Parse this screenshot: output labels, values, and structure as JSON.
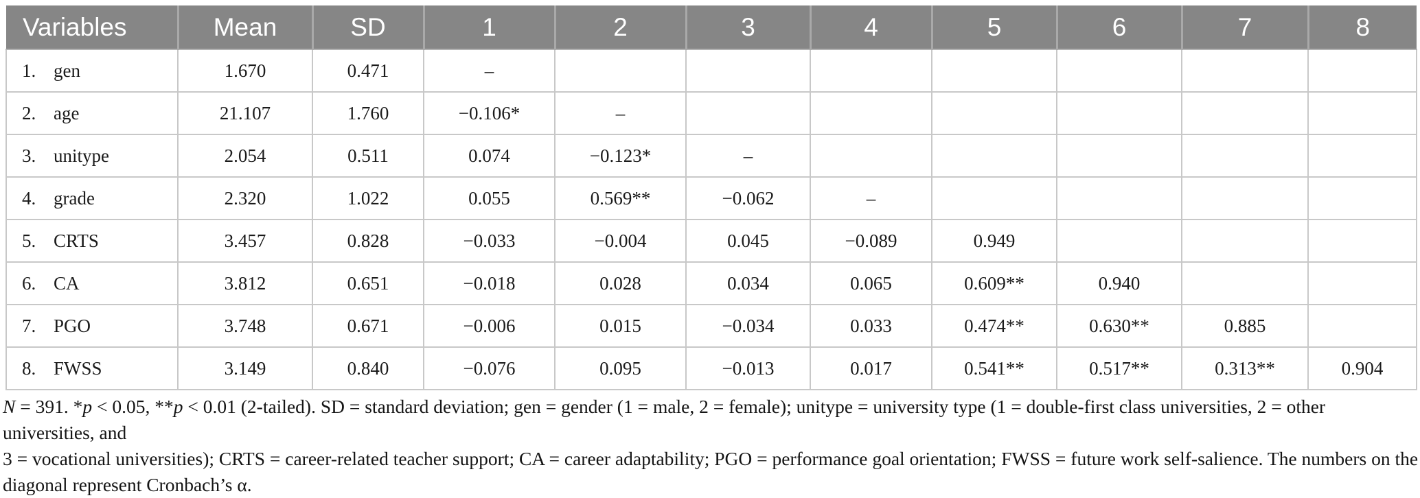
{
  "table": {
    "columns": [
      "Variables",
      "Mean",
      "SD",
      "1",
      "2",
      "3",
      "4",
      "5",
      "6",
      "7",
      "8"
    ],
    "rows": [
      {
        "num": "1.",
        "name": "gen",
        "values": [
          "1.670",
          "0.471",
          "–",
          "",
          "",
          "",
          "",
          "",
          "",
          ""
        ]
      },
      {
        "num": "2.",
        "name": "age",
        "values": [
          "21.107",
          "1.760",
          "−0.106*",
          "–",
          "",
          "",
          "",
          "",
          "",
          ""
        ]
      },
      {
        "num": "3.",
        "name": "unitype",
        "values": [
          "2.054",
          "0.511",
          "0.074",
          "−0.123*",
          "–",
          "",
          "",
          "",
          "",
          ""
        ]
      },
      {
        "num": "4.",
        "name": "grade",
        "values": [
          "2.320",
          "1.022",
          "0.055",
          "0.569**",
          "−0.062",
          "–",
          "",
          "",
          "",
          ""
        ]
      },
      {
        "num": "5.",
        "name": "CRTS",
        "values": [
          "3.457",
          "0.828",
          "−0.033",
          "−0.004",
          "0.045",
          "−0.089",
          "0.949",
          "",
          "",
          ""
        ]
      },
      {
        "num": "6.",
        "name": "CA",
        "values": [
          "3.812",
          "0.651",
          "−0.018",
          "0.028",
          "0.034",
          "0.065",
          "0.609**",
          "0.940",
          "",
          ""
        ]
      },
      {
        "num": "7.",
        "name": "PGO",
        "values": [
          "3.748",
          "0.671",
          "−0.006",
          "0.015",
          "−0.034",
          "0.033",
          "0.474**",
          "0.630**",
          "0.885",
          ""
        ]
      },
      {
        "num": "8.",
        "name": "FWSS",
        "values": [
          "3.149",
          "0.840",
          "−0.076",
          "0.095",
          "−0.013",
          "0.017",
          "0.541**",
          "0.517**",
          "0.313**",
          "0.904"
        ]
      }
    ]
  },
  "footnote": {
    "lines": [
      {
        "segments": [
          {
            "text": "N",
            "italic": true
          },
          {
            "text": " = 391. *",
            "italic": false
          },
          {
            "text": "p",
            "italic": true
          },
          {
            "text": " < 0.05, **",
            "italic": false
          },
          {
            "text": "p",
            "italic": true
          },
          {
            "text": " < 0.01 (2-tailed). SD = standard deviation; gen = gender (1 = male, 2 = female); unitype = university type (1 = double-first class universities, 2 = other universities, and",
            "italic": false
          }
        ]
      },
      {
        "segments": [
          {
            "text": "3 = vocational universities); CRTS = career-related teacher support; CA = career adaptability; PGO = performance goal orientation; FWSS = future work self-salience. The numbers on the",
            "italic": false
          }
        ]
      },
      {
        "segments": [
          {
            "text": "diagonal represent Cronbach’s α.",
            "italic": false
          }
        ]
      }
    ]
  },
  "colors": {
    "header_bg": "#868686",
    "header_text": "#ffffff",
    "header_divider": "#a9a9a9",
    "body_border": "#c8c8c8",
    "text": "#1b1b1b"
  }
}
